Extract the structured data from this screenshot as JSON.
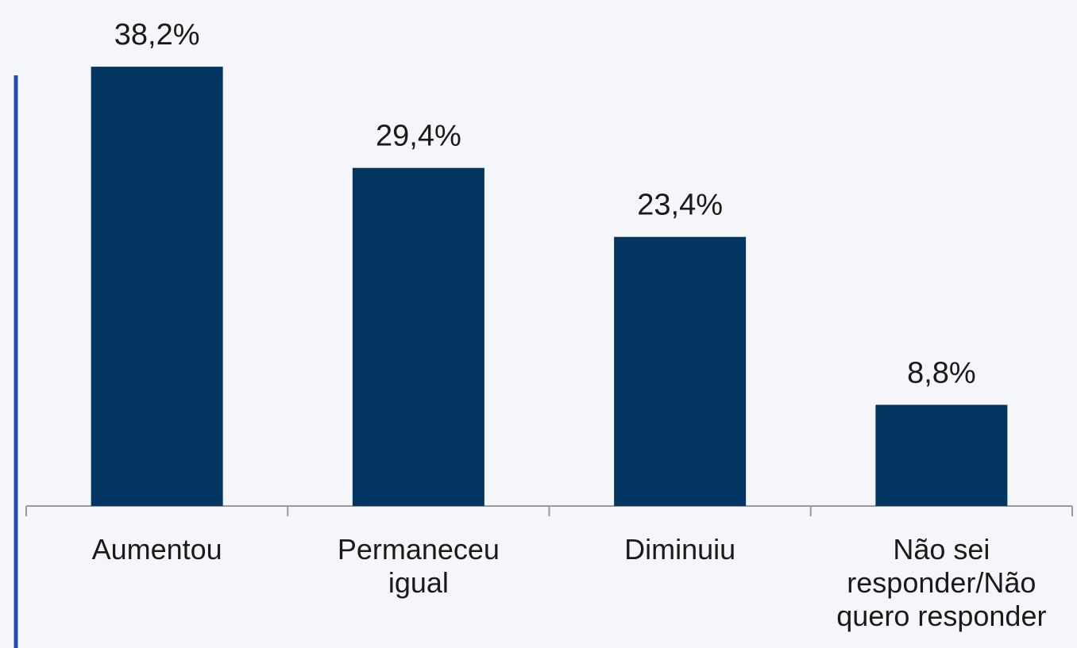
{
  "chart_data": {
    "type": "bar",
    "categories": [
      "Aumentou",
      "Permaneceu\nigual",
      "Diminuiu",
      "Não sei\nresponder/Não\nquero responder"
    ],
    "values": [
      38.2,
      29.4,
      23.4,
      8.8
    ],
    "value_labels": [
      "38,2%",
      "29,4%",
      "23,4%",
      "8,8%"
    ],
    "color": "#02355f"
  }
}
